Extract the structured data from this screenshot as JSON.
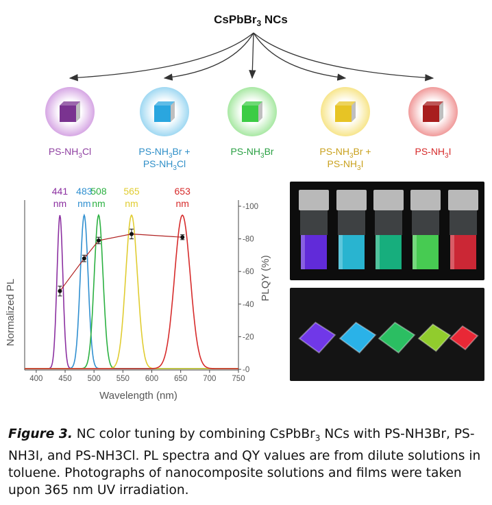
{
  "header": {
    "title_main": "CsPbBr",
    "title_sub": "3",
    "title_tail": " NCs"
  },
  "variants": [
    {
      "parts": [
        [
          "PS-NH",
          ""
        ],
        [
          "3",
          "sub"
        ],
        [
          "Cl",
          ""
        ]
      ],
      "parts2": [],
      "color": "#8e3fa0",
      "cube": "#7a3390",
      "glow": "#d6a6e4"
    },
    {
      "parts": [
        [
          "PS-NH",
          ""
        ],
        [
          "3",
          "sub"
        ],
        [
          "Br +",
          ""
        ]
      ],
      "parts2": [
        [
          "PS-NH",
          ""
        ],
        [
          "3",
          "sub"
        ],
        [
          "Cl",
          ""
        ]
      ],
      "color": "#2f8fc8",
      "cube": "#2aa6df",
      "glow": "#9fd8f2"
    },
    {
      "parts": [
        [
          "PS-NH",
          ""
        ],
        [
          "3",
          "sub"
        ],
        [
          "Br",
          ""
        ]
      ],
      "parts2": [],
      "color": "#2aa043",
      "cube": "#3ccc45",
      "glow": "#a8e8a3"
    },
    {
      "parts": [
        [
          "PS-NH",
          ""
        ],
        [
          "3",
          "sub"
        ],
        [
          "Br +",
          ""
        ]
      ],
      "parts2": [
        [
          "PS-NH",
          ""
        ],
        [
          "3",
          "sub"
        ],
        [
          "I",
          ""
        ]
      ],
      "color": "#c9a11e",
      "cube": "#e7c425",
      "glow": "#f7e58b"
    },
    {
      "parts": [
        [
          "PS-NH",
          ""
        ],
        [
          "3",
          "sub"
        ],
        [
          "I",
          ""
        ]
      ],
      "parts2": [],
      "color": "#d62a2a",
      "cube": "#a81e1e",
      "glow": "#f09a9a"
    }
  ],
  "chart_data": {
    "type": "line",
    "x_label": "Wavelength (nm)",
    "y_left_label": "Normalized PL",
    "y_right_label": "PLQY (%)",
    "xlim": [
      380,
      750
    ],
    "x_ticks": [
      400,
      450,
      500,
      550,
      600,
      650,
      700,
      750
    ],
    "y_right_lim": [
      0,
      100
    ],
    "y_right_ticks": [
      0,
      20,
      40,
      60,
      80,
      100
    ],
    "peaks": [
      {
        "label_value": "441",
        "label_unit": "nm",
        "center": 441,
        "fwhm": 12,
        "color": "#8b2fa0"
      },
      {
        "label_value": "483",
        "label_unit": "nm",
        "center": 483,
        "fwhm": 16,
        "color": "#2f8fd0"
      },
      {
        "label_value": "508",
        "label_unit": "nm",
        "center": 508,
        "fwhm": 18,
        "color": "#2ab040"
      },
      {
        "label_value": "565",
        "label_unit": "nm",
        "center": 565,
        "fwhm": 24,
        "color": "#e0cc30"
      },
      {
        "label_value": "653",
        "label_unit": "nm",
        "center": 653,
        "fwhm": 32,
        "color": "#d62a2a"
      }
    ],
    "plqy": {
      "color": "#b02020",
      "points": [
        {
          "x": 441,
          "y": 48,
          "err": 3
        },
        {
          "x": 483,
          "y": 68,
          "err": 2
        },
        {
          "x": 508,
          "y": 79,
          "err": 2
        },
        {
          "x": 565,
          "y": 83,
          "err": 3
        },
        {
          "x": 653,
          "y": 81,
          "err": 1.5
        }
      ]
    }
  },
  "photos": {
    "solution_colors": [
      "#6a2ff0",
      "#2cc7e6",
      "#18c08a",
      "#4ee05a",
      "#e02a3a"
    ],
    "film_colors": [
      "#7a3cff",
      "#2cc3ff",
      "#2ed06a",
      "#9ee030",
      "#ff2a3a"
    ]
  },
  "caption": {
    "fig_label": "Figure 3.",
    "text": " NC color tuning by combining CsPbBr",
    "text_sub": "3",
    "text2": " NCs with PS-NH3Br, PS-NH3I, and PS-NH3Cl. PL spectra and QY values are from dilute solutions in toluene. Photographs of nanocomposite solutions and films were taken upon 365 nm UV irradiation."
  }
}
